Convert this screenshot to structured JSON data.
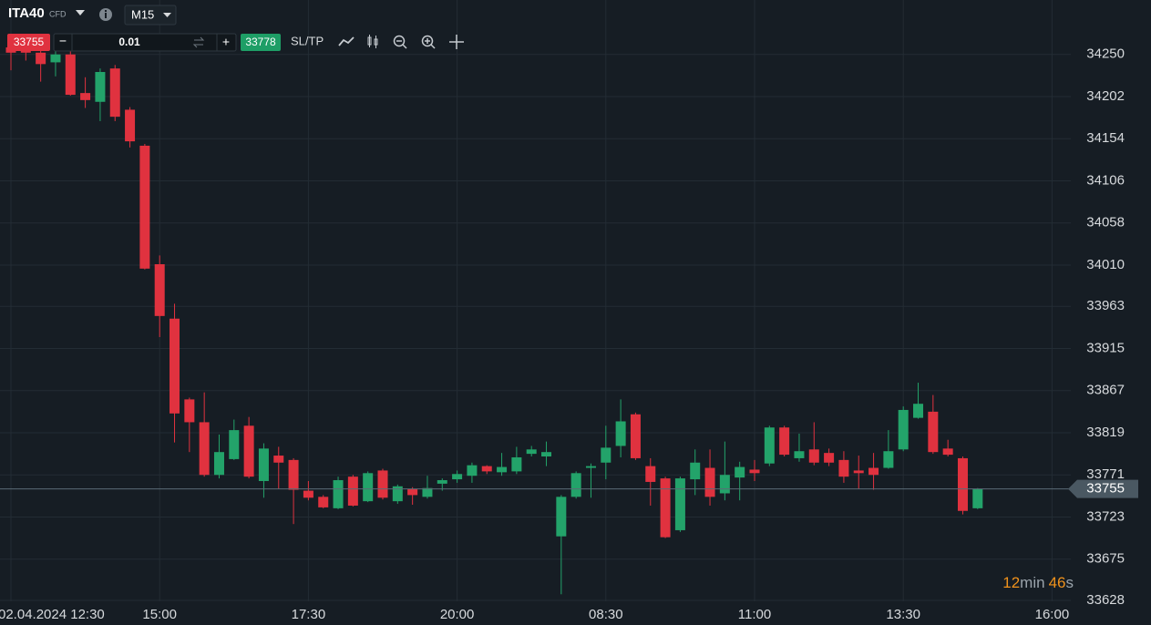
{
  "header": {
    "symbol": "ITA40",
    "instrument_type": "CFD",
    "timeframe": "M15"
  },
  "order": {
    "sell_price": "33755",
    "minus": "−",
    "volume": "0.01",
    "plus": "+",
    "buy_price": "33778",
    "sltp": "SL/TP"
  },
  "chart_data": {
    "type": "candlestick",
    "categories": [
      "02.04.2024 12:30",
      null,
      null,
      null,
      null,
      null,
      null,
      null,
      null,
      null,
      "15:00",
      null,
      null,
      null,
      null,
      null,
      null,
      null,
      null,
      null,
      "17:30",
      null,
      null,
      null,
      null,
      null,
      null,
      null,
      null,
      null,
      "20:00",
      null,
      null,
      null,
      null,
      null,
      null,
      null,
      null,
      null,
      "08:30",
      null,
      null,
      null,
      null,
      null,
      null,
      null,
      null,
      null,
      "11:00",
      null,
      null,
      null,
      null,
      null,
      null,
      null,
      null,
      null,
      "13:30",
      null,
      null,
      null,
      null,
      null,
      null,
      null,
      null,
      null,
      "16:00"
    ],
    "open": [
      34258,
      34254,
      34252,
      34241,
      34250,
      34206,
      34196,
      34234,
      34187,
      34146,
      34011,
      33949,
      33857,
      33831,
      33771,
      33789,
      33827,
      33764,
      33793,
      33788,
      33753,
      33746,
      33733,
      33769,
      33741,
      33776,
      33741,
      33755,
      33746,
      33761,
      33766,
      33770,
      33781,
      33774,
      33775,
      33795,
      33792,
      33701,
      33746,
      33779,
      33785,
      33804,
      33840,
      33781,
      33767,
      33708,
      33766,
      33779,
      33750,
      33768,
      33777,
      33784,
      33825,
      33790,
      33800,
      33796,
      33788,
      33776,
      33779,
      33779,
      33800,
      33836,
      33843,
      33801,
      33790,
      33733,
      null,
      null,
      null,
      null,
      null
    ],
    "high": [
      34262,
      34260,
      34260,
      34255,
      34255,
      34224,
      34234,
      34238,
      34190,
      34148,
      34021,
      33966,
      33859,
      33865,
      33817,
      33834,
      33837,
      33807,
      33803,
      33790,
      33764,
      33748,
      33769,
      33771,
      33775,
      33778,
      33760,
      33757,
      33770,
      33767,
      33776,
      33785,
      33782,
      33796,
      33803,
      33804,
      33809,
      33748,
      33775,
      33784,
      33827,
      33857,
      33842,
      33790,
      33769,
      33769,
      33800,
      33800,
      33809,
      33786,
      33788,
      33827,
      33827,
      33818,
      33831,
      33801,
      33798,
      33793,
      33796,
      33822,
      33849,
      33876,
      33862,
      33811,
      33792,
      33756,
      null,
      null,
      null,
      null,
      null
    ],
    "low": [
      34232,
      34243,
      34219,
      34225,
      34203,
      34189,
      34174,
      34174,
      34144,
      34005,
      33928,
      33808,
      33797,
      33769,
      33767,
      33788,
      33767,
      33745,
      33755,
      33715,
      33742,
      33733,
      33732,
      33735,
      33740,
      33743,
      33738,
      33737,
      33744,
      33753,
      33762,
      33762,
      33772,
      33770,
      33772,
      33792,
      33781,
      33635,
      33744,
      33745,
      33766,
      33791,
      33788,
      33736,
      33699,
      33706,
      33748,
      33736,
      33742,
      33742,
      33764,
      33781,
      33792,
      33786,
      33782,
      33781,
      33762,
      33755,
      33754,
      33778,
      33798,
      33835,
      33795,
      33792,
      33726,
      33732,
      null,
      null,
      null,
      null,
      null
    ],
    "close": [
      34252,
      34252,
      34239,
      34250,
      34204,
      34198,
      34230,
      34179,
      34151,
      34006,
      33952,
      33841,
      33831,
      33771,
      33797,
      33822,
      33769,
      33801,
      33785,
      33754,
      33745,
      33734,
      33765,
      33736,
      33773,
      33745,
      33758,
      33748,
      33756,
      33765,
      33772,
      33782,
      33775,
      33780,
      33791,
      33800,
      33797,
      33746,
      33773,
      33781,
      33802,
      33832,
      33790,
      33763,
      33700,
      33767,
      33785,
      33746,
      33771,
      33780,
      33773,
      33825,
      33794,
      33798,
      33785,
      33785,
      33769,
      33773,
      33771,
      33798,
      33845,
      33852,
      33797,
      33794,
      33730,
      33755,
      null,
      null,
      null,
      null,
      null
    ],
    "up_color": "#23a36a",
    "down_color": "#e0323f",
    "ylim": [
      33600,
      34312
    ],
    "yticks": [
      34250,
      34202,
      34154,
      34106,
      34058,
      34010,
      33963,
      33915,
      33867,
      33819,
      33771,
      33723,
      33675,
      33628
    ],
    "grid": true,
    "last_price": 33755,
    "countdown": {
      "minutes": "12",
      "minutes_unit": "min",
      "seconds": "46",
      "seconds_unit": "s"
    }
  }
}
